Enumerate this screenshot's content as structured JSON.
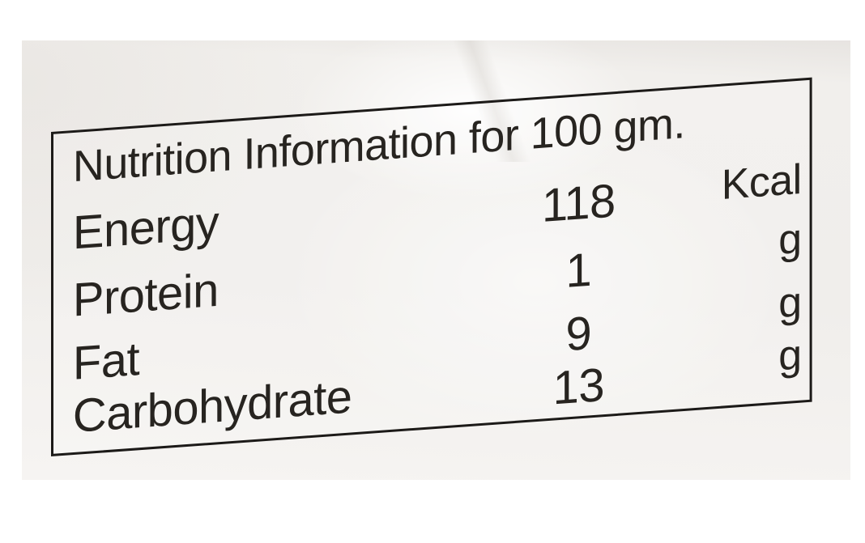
{
  "label": {
    "title": "Nutrition Information for 100 gm.",
    "rows": [
      {
        "name": "Energy",
        "value": "118",
        "unit": "Kcal"
      },
      {
        "name": "Protein",
        "value": "1",
        "unit": "g"
      },
      {
        "name": "Fat",
        "value": "9",
        "unit": "g"
      },
      {
        "name": "Carbohydrate",
        "value": "13",
        "unit": "g"
      }
    ],
    "colors": {
      "ink": "#272420",
      "rule_border": "#1c1a18",
      "paper": "#f0eeeb"
    }
  }
}
